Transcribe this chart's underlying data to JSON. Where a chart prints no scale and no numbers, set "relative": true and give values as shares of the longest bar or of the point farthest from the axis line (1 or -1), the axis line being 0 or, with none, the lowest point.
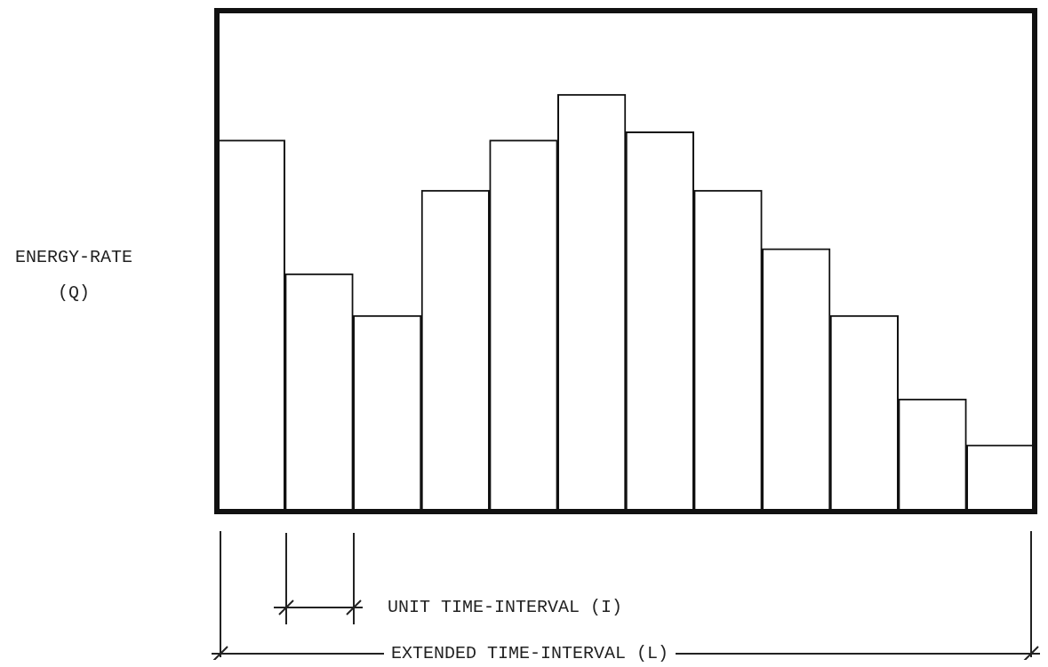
{
  "chart_data": {
    "type": "bar",
    "relative": true,
    "ylabel": "ENERGY-RATE (Q)",
    "categories": [
      null,
      null,
      null,
      null,
      null,
      null,
      null,
      null,
      null,
      null,
      null,
      null
    ],
    "series": [
      {
        "color": "#ffffff",
        "values": [
          0.89,
          0.57,
          0.47,
          0.77,
          0.89,
          1,
          0.91,
          0.77,
          0.63,
          0.47,
          0.27,
          0.16
        ]
      }
    ],
    "annotations": [
      "UNIT TIME-INTERVAL (I)",
      "EXTENDED TIME-INTERVAL (L)"
    ]
  }
}
